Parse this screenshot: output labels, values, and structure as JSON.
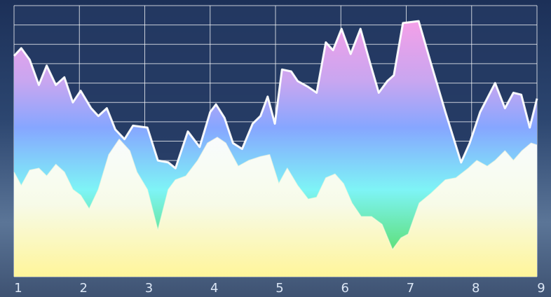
{
  "chart_data": {
    "type": "area",
    "xlim": [
      1,
      9
    ],
    "xticks": [
      1,
      2,
      3,
      4,
      5,
      6,
      7,
      8,
      9
    ],
    "ylim": [
      0,
      14
    ],
    "yticks": [
      0,
      1,
      2,
      3,
      4,
      5,
      6,
      7,
      8,
      9,
      10,
      11,
      12,
      13,
      14
    ],
    "grid": true,
    "series": [
      {
        "color": "#ffffff",
        "x": [
          1.0,
          1.11,
          1.24,
          1.38,
          1.5,
          1.64,
          1.77,
          1.9,
          2.02,
          2.18,
          2.29,
          2.42,
          2.55,
          2.69,
          2.82,
          3.04,
          3.2,
          3.36,
          3.47,
          3.66,
          3.84,
          4.0,
          4.09,
          4.22,
          4.35,
          4.49,
          4.65,
          4.77,
          4.88,
          4.99,
          5.1,
          5.24,
          5.34,
          5.5,
          5.63,
          5.77,
          5.88,
          6.01,
          6.15,
          6.3,
          6.45,
          6.58,
          6.71,
          6.81,
          6.95,
          7.19,
          7.38,
          7.6,
          7.84,
          7.97,
          8.13,
          8.36,
          8.51,
          8.64,
          8.76,
          8.89,
          9.0
        ],
        "values": [
          11.4,
          11.8,
          11.2,
          9.9,
          10.9,
          9.9,
          10.3,
          9.0,
          9.6,
          8.7,
          8.3,
          8.7,
          7.6,
          7.1,
          7.8,
          7.7,
          6.0,
          5.9,
          5.6,
          7.5,
          6.7,
          8.5,
          8.9,
          8.2,
          6.9,
          6.6,
          7.9,
          8.3,
          9.3,
          7.9,
          10.7,
          10.6,
          10.1,
          9.8,
          9.5,
          12.1,
          11.7,
          12.8,
          11.5,
          12.8,
          11.0,
          9.5,
          10.1,
          10.4,
          13.1,
          13.2,
          11.0,
          8.5,
          5.9,
          6.9,
          8.5,
          10.0,
          8.7,
          9.5,
          9.4,
          7.7,
          9.2
        ]
      },
      {
        "color": "#fffbe0",
        "x": [
          1.0,
          1.11,
          1.24,
          1.38,
          1.5,
          1.64,
          1.77,
          1.9,
          2.02,
          2.15,
          2.29,
          2.45,
          2.61,
          2.77,
          2.88,
          3.04,
          3.2,
          3.36,
          3.47,
          3.63,
          3.81,
          3.96,
          4.11,
          4.24,
          4.43,
          4.59,
          4.77,
          4.91,
          5.05,
          5.18,
          5.34,
          5.5,
          5.63,
          5.77,
          5.91,
          6.04,
          6.17,
          6.31,
          6.47,
          6.63,
          6.79,
          6.92,
          7.03,
          7.2,
          7.38,
          7.6,
          7.76,
          7.95,
          8.08,
          8.24,
          8.36,
          8.51,
          8.64,
          8.77,
          8.91,
          9.0
        ],
        "values": [
          5.4,
          4.7,
          5.5,
          5.6,
          5.2,
          5.8,
          5.4,
          4.5,
          4.2,
          3.5,
          4.5,
          6.3,
          7.1,
          6.5,
          5.4,
          4.5,
          2.4,
          4.5,
          5.0,
          5.2,
          6.0,
          6.9,
          7.2,
          6.9,
          5.7,
          6.0,
          6.2,
          6.3,
          4.8,
          5.6,
          4.7,
          4.0,
          4.1,
          5.1,
          5.3,
          4.8,
          3.8,
          3.1,
          3.1,
          2.7,
          1.4,
          2.0,
          2.2,
          3.8,
          4.3,
          5.0,
          5.1,
          5.6,
          6.0,
          5.7,
          6.0,
          6.5,
          6.0,
          6.5,
          6.9,
          6.8
        ]
      }
    ]
  }
}
